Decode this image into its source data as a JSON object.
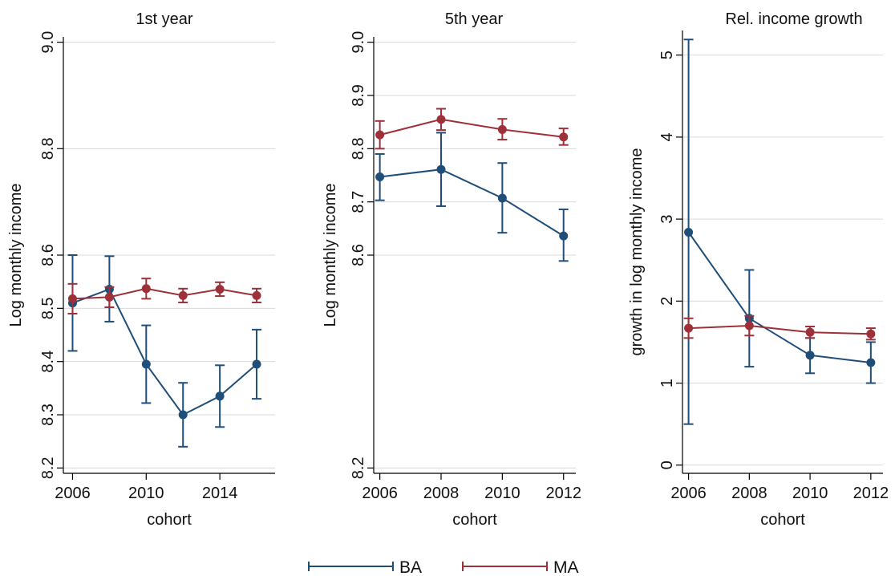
{
  "chart_data": [
    {
      "type": "line",
      "title": "1st year",
      "xlabel": "cohort",
      "ylabel": "Log monthly income",
      "x_ticks": [
        "2006",
        "2010",
        "2014"
      ],
      "y_ticks": [
        "8.2",
        "8.3",
        "8.4",
        "8.5",
        "8.6",
        "8.8",
        "9.0"
      ],
      "xlim": [
        2005.5,
        2017
      ],
      "ylim": [
        8.19,
        9.01
      ],
      "grid": true,
      "error_bars": true,
      "series": [
        {
          "name": "BA",
          "color": "#1f4e79",
          "points": [
            {
              "x": 2006,
              "y": 8.51,
              "lo": 8.42,
              "hi": 8.6
            },
            {
              "x": 2008,
              "y": 8.536,
              "lo": 8.475,
              "hi": 8.598
            },
            {
              "x": 2010,
              "y": 8.395,
              "lo": 8.322,
              "hi": 8.468
            },
            {
              "x": 2012,
              "y": 8.3,
              "lo": 8.24,
              "hi": 8.36
            },
            {
              "x": 2014,
              "y": 8.335,
              "lo": 8.277,
              "hi": 8.393
            },
            {
              "x": 2016,
              "y": 8.395,
              "lo": 8.33,
              "hi": 8.46
            }
          ]
        },
        {
          "name": "MA",
          "color": "#9e3039",
          "points": [
            {
              "x": 2006,
              "y": 8.518,
              "lo": 8.49,
              "hi": 8.546
            },
            {
              "x": 2008,
              "y": 8.521,
              "lo": 8.502,
              "hi": 8.54
            },
            {
              "x": 2010,
              "y": 8.537,
              "lo": 8.518,
              "hi": 8.556
            },
            {
              "x": 2012,
              "y": 8.524,
              "lo": 8.511,
              "hi": 8.537
            },
            {
              "x": 2014,
              "y": 8.536,
              "lo": 8.523,
              "hi": 8.549
            },
            {
              "x": 2016,
              "y": 8.524,
              "lo": 8.511,
              "hi": 8.537
            }
          ]
        }
      ]
    },
    {
      "type": "line",
      "title": "5th year",
      "xlabel": "cohort",
      "ylabel": "Log monthly income",
      "x_ticks": [
        "2006",
        "2008",
        "2010",
        "2012"
      ],
      "y_ticks": [
        "8.2",
        "8.6",
        "8.7",
        "8.8",
        "8.9",
        "9.0"
      ],
      "xlim": [
        2005.8,
        2012.4
      ],
      "ylim": [
        8.19,
        9.01
      ],
      "grid": true,
      "error_bars": true,
      "series": [
        {
          "name": "BA",
          "color": "#1f4e79",
          "points": [
            {
              "x": 2006,
              "y": 8.747,
              "lo": 8.703,
              "hi": 8.79
            },
            {
              "x": 2008,
              "y": 8.761,
              "lo": 8.692,
              "hi": 8.83
            },
            {
              "x": 2010,
              "y": 8.707,
              "lo": 8.642,
              "hi": 8.773
            },
            {
              "x": 2012,
              "y": 8.636,
              "lo": 8.589,
              "hi": 8.686
            }
          ]
        },
        {
          "name": "MA",
          "color": "#9e3039",
          "points": [
            {
              "x": 2006,
              "y": 8.826,
              "lo": 8.8,
              "hi": 8.852
            },
            {
              "x": 2008,
              "y": 8.855,
              "lo": 8.835,
              "hi": 8.875
            },
            {
              "x": 2010,
              "y": 8.836,
              "lo": 8.817,
              "hi": 8.856
            },
            {
              "x": 2012,
              "y": 8.822,
              "lo": 8.807,
              "hi": 8.838
            }
          ]
        }
      ]
    },
    {
      "type": "line",
      "title": "Rel. income growth",
      "xlabel": "cohort",
      "ylabel": "growth in log monthly income",
      "x_ticks": [
        "2006",
        "2008",
        "2010",
        "2012"
      ],
      "y_ticks": [
        "0",
        "1",
        "2",
        "3",
        "4",
        "5"
      ],
      "xlim": [
        2005.8,
        2012.4
      ],
      "ylim": [
        -0.1,
        5.3
      ],
      "grid": true,
      "error_bars": true,
      "series": [
        {
          "name": "BA",
          "color": "#1f4e79",
          "points": [
            {
              "x": 2006,
              "y": 2.84,
              "lo": 0.5,
              "hi": 5.19
            },
            {
              "x": 2008,
              "y": 1.79,
              "lo": 1.2,
              "hi": 2.38
            },
            {
              "x": 2010,
              "y": 1.34,
              "lo": 1.12,
              "hi": 1.55
            },
            {
              "x": 2012,
              "y": 1.25,
              "lo": 1.0,
              "hi": 1.5
            }
          ]
        },
        {
          "name": "MA",
          "color": "#9e3039",
          "points": [
            {
              "x": 2006,
              "y": 1.67,
              "lo": 1.55,
              "hi": 1.79
            },
            {
              "x": 2008,
              "y": 1.7,
              "lo": 1.58,
              "hi": 1.82
            },
            {
              "x": 2010,
              "y": 1.62,
              "lo": 1.55,
              "hi": 1.69
            },
            {
              "x": 2012,
              "y": 1.6,
              "lo": 1.53,
              "hi": 1.67
            }
          ]
        }
      ]
    }
  ],
  "legend": {
    "placement": "bottom-center",
    "items": [
      {
        "label": "BA",
        "color": "#1f4e79"
      },
      {
        "label": "MA",
        "color": "#9e3039"
      }
    ]
  }
}
